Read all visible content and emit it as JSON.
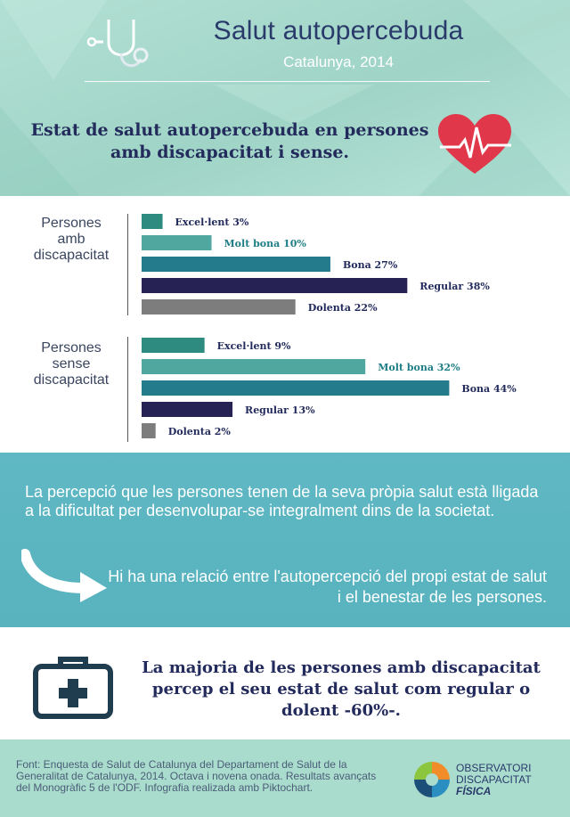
{
  "header": {
    "title": "Salut autopercebuda",
    "subtitle": "Catalunya, 2014",
    "chart_heading": "Estat de salut autopercebuda en persones amb discapacitat i sense."
  },
  "colors": {
    "excellent": "#2e8b80",
    "very_good": "#4fa79f",
    "good": "#237b8c",
    "regular": "#272254",
    "bad": "#7d7d7d",
    "label_dark": "#232b5c",
    "label_teal": "#1e7d85"
  },
  "chart_data": {
    "type": "bar",
    "orientation": "horizontal",
    "unit": "%",
    "groups": [
      {
        "name": "Persones amb discapacitat",
        "bars": [
          {
            "category": "Excel·lent",
            "value": 3,
            "label": "Excel·lent 3%"
          },
          {
            "category": "Molt bona",
            "value": 10,
            "label": "Molt bona 10%"
          },
          {
            "category": "Bona",
            "value": 27,
            "label": "Bona 27%"
          },
          {
            "category": "Regular",
            "value": 38,
            "label": "Regular 38%"
          },
          {
            "category": "Dolenta",
            "value": 22,
            "label": "Dolenta 22%"
          }
        ]
      },
      {
        "name": "Persones sense discapacitat",
        "bars": [
          {
            "category": "Excel·lent",
            "value": 9,
            "label": "Excel·lent 9%"
          },
          {
            "category": "Molt bona",
            "value": 32,
            "label": "Molt bona 32%"
          },
          {
            "category": "Bona",
            "value": 44,
            "label": "Bona 44%"
          },
          {
            "category": "Regular",
            "value": 13,
            "label": "Regular 13%"
          },
          {
            "category": "Dolenta",
            "value": 2,
            "label": "Dolenta 2%"
          }
        ]
      }
    ]
  },
  "group_labels": {
    "with": [
      "Persones",
      "amb",
      "discapacitat"
    ],
    "without": [
      "Persones",
      "sense",
      "discapacitat"
    ]
  },
  "info": {
    "perception": "La percepció que les persones tenen de la seva pròpia salut està lligada a la dificultat per desenvolupar-se integralment dins de la societat.",
    "relation": "Hi ha una relació entre l'autopercepció del propi estat de salut i el benestar de les persones."
  },
  "conclusion": "La majoria de les persones amb discapacitat percep el seu estat de salut com regular o dolent -60%-.",
  "footer": {
    "source": "Font: Enquesta de Salut de Catalunya del Departament de Salut de la Generalitat de Catalunya, 2014. Octava i novena onada. Resultats avançats del Monogràfic 5 de l'ODF. Infografia realizada amb Piktochart.",
    "logo_line1": "OBSERVATORI",
    "logo_line2": "DISCAPACITAT",
    "logo_line3": "FÍSICA"
  },
  "icons": [
    "stethoscope-icon",
    "heart-pulse-icon",
    "arrow-right-icon",
    "first-aid-kit-icon",
    "observatori-logo-icon"
  ]
}
